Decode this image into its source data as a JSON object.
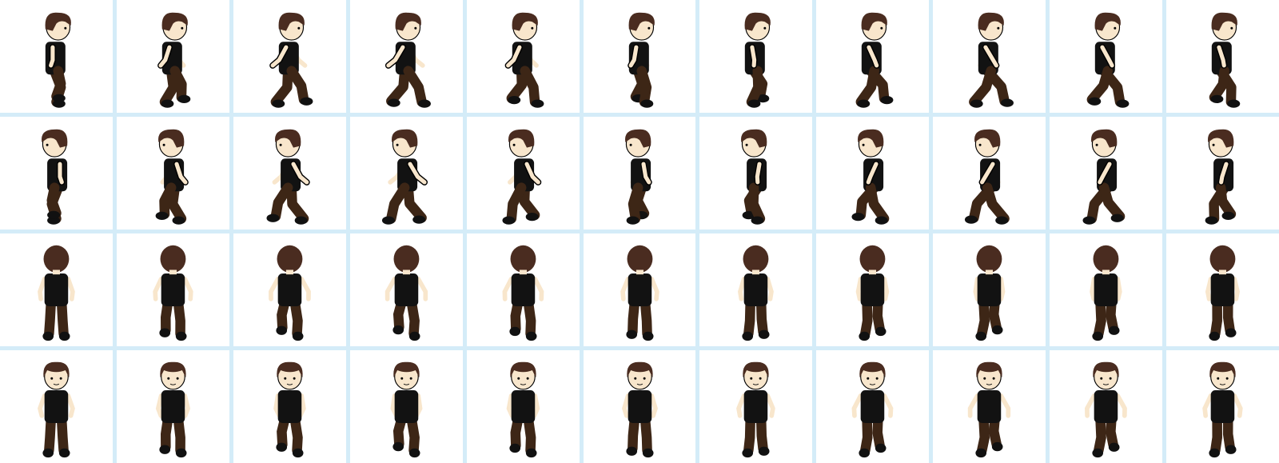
{
  "sheet": {
    "rows": 4,
    "cols": 11,
    "colors": {
      "grid_line": "#d4ecf8",
      "cell_bg": "#ffffff",
      "hair": "#4a2c20",
      "skin": "#f8e6cc",
      "shirt": "#121212",
      "pants": "#3d2616",
      "shoe": "#111111",
      "outline": "#000000"
    },
    "row_views": [
      "side-right",
      "side-left",
      "back",
      "front"
    ],
    "row_icons": [
      "walk-right-icon",
      "walk-left-icon",
      "walk-away-icon",
      "walk-toward-icon"
    ]
  }
}
